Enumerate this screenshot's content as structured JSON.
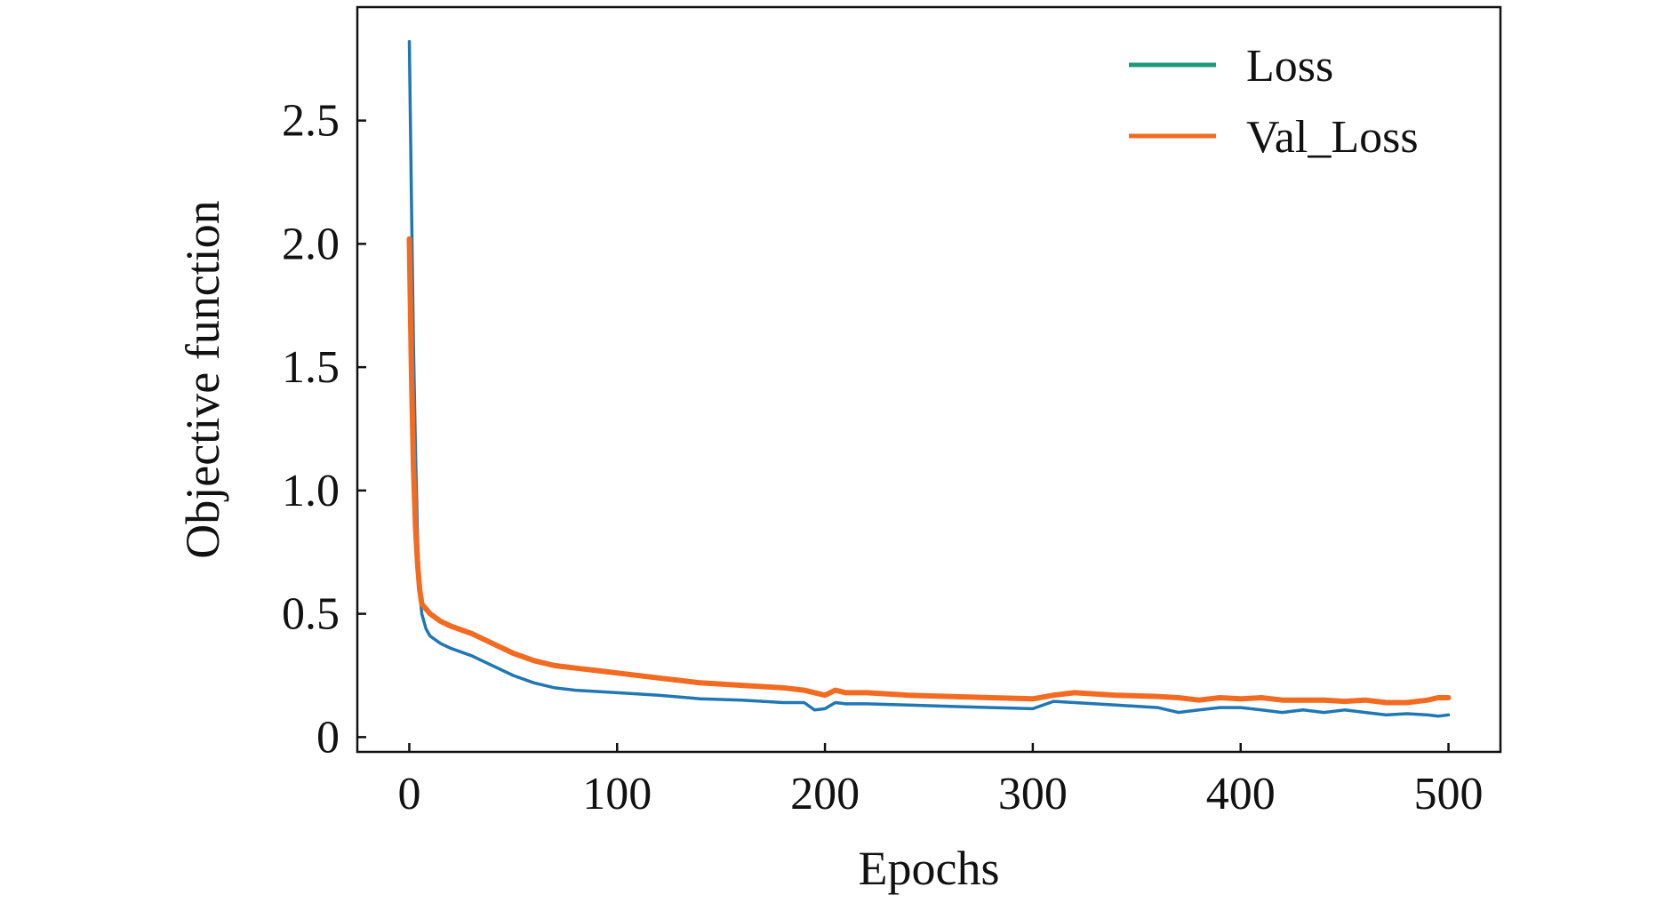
{
  "chart_data": {
    "type": "line",
    "title": "",
    "xlabel": "Epochs",
    "ylabel": "Objective function",
    "xlim": [
      -25,
      525
    ],
    "ylim": [
      -0.06,
      2.96
    ],
    "xticks": [
      0,
      100,
      200,
      300,
      400,
      500
    ],
    "xtick_labels": [
      "0",
      "100",
      "200",
      "300",
      "400",
      "500"
    ],
    "yticks": [
      0,
      0.5,
      1.0,
      1.5,
      2.0,
      2.5
    ],
    "ytick_labels": [
      "0",
      "0.5",
      "1.0",
      "1.5",
      "2.0",
      "2.5"
    ],
    "grid": false,
    "legend_position": "top-right",
    "series": [
      {
        "name": "Loss",
        "color": "#1f77b4",
        "legend_color": "#1a9a7a",
        "x": [
          0,
          1,
          2,
          3,
          4,
          5,
          6,
          8,
          10,
          15,
          20,
          30,
          40,
          50,
          60,
          70,
          80,
          90,
          100,
          120,
          140,
          160,
          180,
          190,
          195,
          200,
          205,
          210,
          220,
          240,
          260,
          280,
          300,
          310,
          320,
          340,
          360,
          370,
          380,
          390,
          400,
          410,
          420,
          430,
          440,
          450,
          460,
          470,
          480,
          490,
          495,
          500
        ],
        "y": [
          2.82,
          2.2,
          1.6,
          1.15,
          0.8,
          0.6,
          0.5,
          0.44,
          0.41,
          0.38,
          0.36,
          0.33,
          0.29,
          0.25,
          0.22,
          0.2,
          0.19,
          0.185,
          0.18,
          0.17,
          0.155,
          0.15,
          0.14,
          0.14,
          0.11,
          0.115,
          0.14,
          0.135,
          0.135,
          0.13,
          0.125,
          0.12,
          0.115,
          0.145,
          0.14,
          0.13,
          0.12,
          0.1,
          0.11,
          0.12,
          0.12,
          0.11,
          0.1,
          0.11,
          0.1,
          0.11,
          0.1,
          0.09,
          0.095,
          0.09,
          0.085,
          0.09
        ]
      },
      {
        "name": "Val_Loss",
        "color": "#f26b21",
        "legend_color": "#f26b21",
        "x": [
          0,
          1,
          2,
          3,
          4,
          5,
          6,
          8,
          10,
          15,
          20,
          30,
          40,
          50,
          60,
          70,
          80,
          90,
          100,
          120,
          140,
          160,
          180,
          190,
          195,
          200,
          205,
          210,
          220,
          240,
          260,
          280,
          300,
          310,
          320,
          340,
          360,
          370,
          380,
          390,
          400,
          410,
          420,
          430,
          440,
          450,
          460,
          470,
          480,
          490,
          495,
          500
        ],
        "y": [
          2.02,
          1.5,
          1.1,
          0.85,
          0.7,
          0.6,
          0.54,
          0.52,
          0.5,
          0.47,
          0.45,
          0.42,
          0.38,
          0.34,
          0.31,
          0.29,
          0.28,
          0.27,
          0.26,
          0.24,
          0.22,
          0.21,
          0.2,
          0.19,
          0.18,
          0.17,
          0.19,
          0.18,
          0.18,
          0.17,
          0.165,
          0.16,
          0.155,
          0.17,
          0.18,
          0.17,
          0.165,
          0.16,
          0.15,
          0.16,
          0.155,
          0.16,
          0.15,
          0.15,
          0.15,
          0.145,
          0.15,
          0.14,
          0.14,
          0.15,
          0.16,
          0.16
        ]
      }
    ]
  }
}
